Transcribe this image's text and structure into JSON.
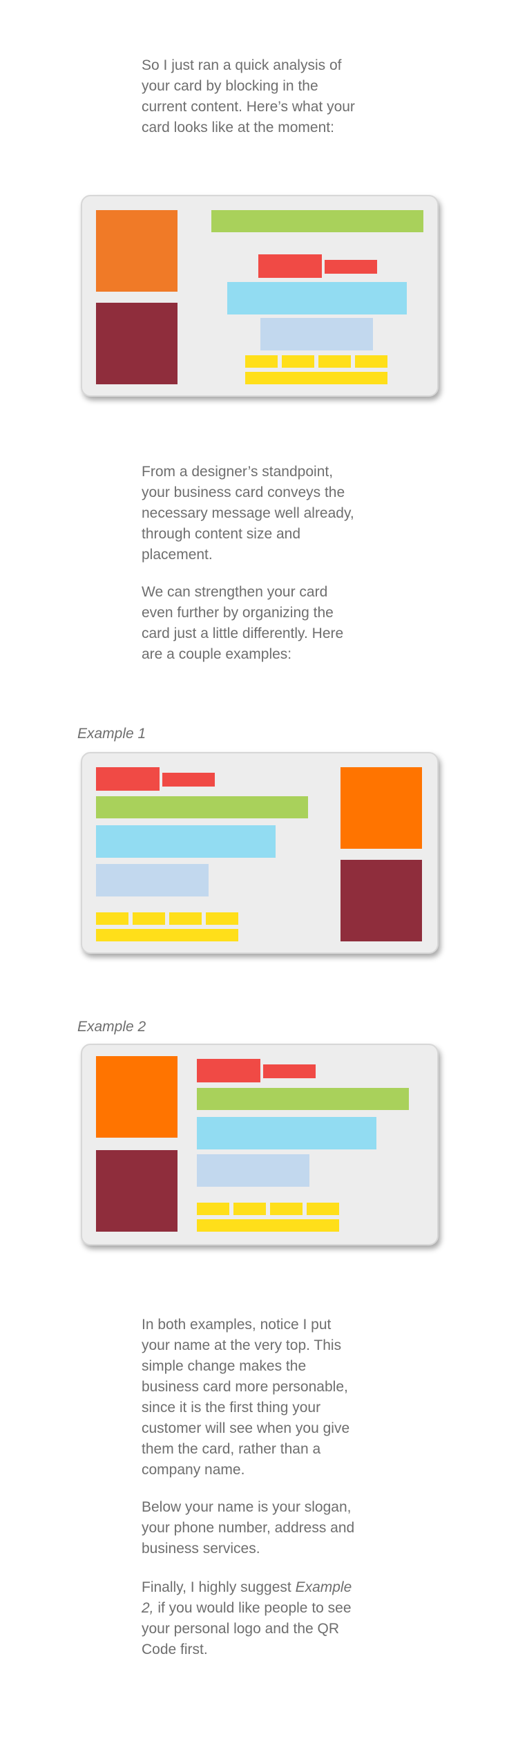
{
  "intro": {
    "lines": [
      "So I just ran a quick analysis of",
      "your card by blocking in the",
      "current content. Here’s what your",
      "card looks like at the moment:"
    ]
  },
  "middle": {
    "para1_lines": [
      "From a designer’s standpoint,",
      "your business card conveys the",
      "necessary message well already,",
      "through content size and",
      "placement."
    ],
    "para2_lines": [
      "We can strengthen your card",
      "even further by organizing the",
      "card just a little differently. Here",
      "are a couple examples:"
    ]
  },
  "examples": {
    "example1_label": "Example 1",
    "example2_label": "Example 2"
  },
  "colors": {
    "orange_current": "#f07a27",
    "orange_examples": "#ff7400",
    "maroon": "#8f2d3c",
    "green": "#a9d15b",
    "red": "#f04a45",
    "sky_blue": "#92dcf2",
    "light_blue": "#c2d8ee",
    "yellow": "#ffdf1a",
    "card_bg": "#ededed",
    "text": "#6e6e6e"
  },
  "closing": {
    "para1_lines": [
      "In both examples, notice I put",
      "your name at the very top. This",
      "simple change makes the",
      "business card more personable,",
      "since it is the first thing your",
      "customer will see when you give",
      "them the card, rather than a",
      "company name."
    ],
    "para2_lines": [
      "Below your name is your slogan,",
      "your phone number, address and",
      "business services."
    ],
    "para3": {
      "line1_prefix": "Finally, I highly suggest ",
      "line1_em": "Example",
      "line2_em": "2,",
      "line2_suffix": " if you would like people to see",
      "line3": "your personal logo and the QR",
      "line4": "Code first."
    }
  }
}
